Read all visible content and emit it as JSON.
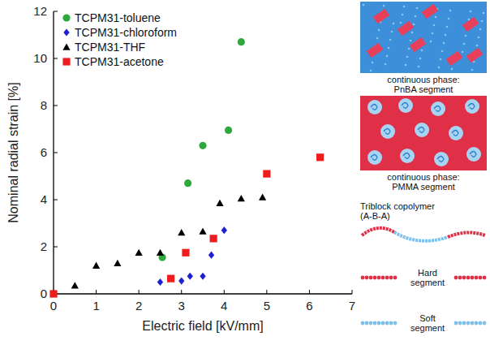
{
  "chart_data": {
    "type": "scatter",
    "x_label": "Electric field [kV/mm]",
    "y_label": "Nominal radial strain [%]",
    "xlim": [
      0,
      7
    ],
    "xticks": [
      0,
      1,
      2,
      3,
      4,
      5,
      6,
      7
    ],
    "ylim": [
      0,
      12
    ],
    "yticks": [
      0,
      2,
      4,
      6,
      8,
      10,
      12
    ],
    "grid": false,
    "legend": "upper left",
    "series": [
      {
        "name": "TCPM31-toluene",
        "color": "#2eaa3c",
        "marker": "circle",
        "x": [
          2.55,
          3.15,
          3.5,
          4.1,
          4.4
        ],
        "values": [
          1.55,
          4.7,
          6.3,
          6.95,
          10.7
        ]
      },
      {
        "name": "TCPM31-chloroform",
        "color": "#1f1fd6",
        "marker": "diamond",
        "x": [
          2.5,
          3.0,
          3.2,
          3.5,
          3.7,
          4.0
        ],
        "values": [
          0.5,
          0.55,
          0.75,
          0.75,
          1.65,
          2.7
        ]
      },
      {
        "name": "TCPM31-THF",
        "color": "#000000",
        "marker": "triangle",
        "x": [
          0.5,
          1.0,
          1.5,
          2.0,
          2.5,
          3.0,
          3.5,
          3.9,
          4.4,
          4.9
        ],
        "values": [
          0.35,
          1.2,
          1.3,
          1.75,
          1.75,
          2.6,
          2.65,
          3.85,
          4.05,
          4.1
        ]
      },
      {
        "name": "TCPM31-acetone",
        "color": "#ee1c1c",
        "marker": "square",
        "x": [
          0,
          2.75,
          3.1,
          3.75,
          5.0,
          6.25
        ],
        "values": [
          0,
          0.65,
          1.75,
          2.35,
          5.1,
          5.8
        ]
      }
    ]
  },
  "diagram": {
    "images": [
      {
        "caption": [
          "continuous phase:",
          "PnBA segment"
        ]
      },
      {
        "caption": [
          "continuous phase:",
          "PMMA segment"
        ]
      }
    ],
    "copolymer_label": [
      "Triblock copolymer",
      "(A-B-A)"
    ],
    "segments": [
      {
        "label": [
          "Hard",
          "segment"
        ]
      },
      {
        "label": [
          "Soft",
          "segment"
        ]
      }
    ]
  }
}
